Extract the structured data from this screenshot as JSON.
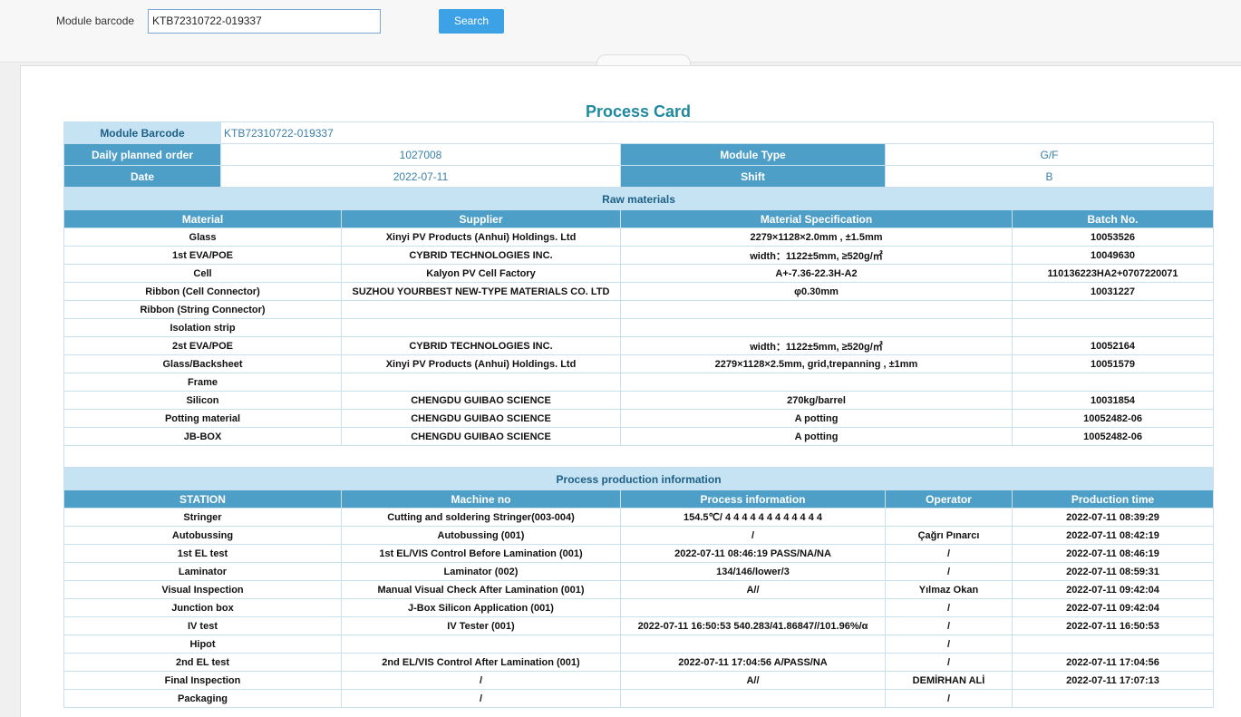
{
  "search": {
    "label": "Module barcode",
    "value": "KTB72310722-019337",
    "button": "Search"
  },
  "card": {
    "title": "Process Card",
    "info": {
      "rows": [
        [
          "Module Barcode",
          "KTB72310722-019337"
        ],
        [
          "Daily planned order",
          "1027008",
          "Module Type",
          "G/F"
        ],
        [
          "Date",
          "2022-07-11",
          "Shift",
          "B"
        ]
      ]
    },
    "raw_materials": {
      "title": "Raw materials",
      "headers": [
        "Material",
        "Supplier",
        "Material Specification",
        "Batch No."
      ],
      "rows": [
        [
          "Glass",
          "Xinyi PV Products (Anhui) Holdings. Ltd",
          "2279×1128×2.0mm , ±1.5mm",
          "10053526"
        ],
        [
          "1st EVA/POE",
          "CYBRID TECHNOLOGIES INC.",
          "width：1122±5mm, ≥520g/㎡",
          "10049630"
        ],
        [
          "Cell",
          "Kalyon PV  Cell Factory",
          "A+-7.36-22.3H-A2",
          "110136223HA2+0707220071"
        ],
        [
          "Ribbon (Cell Connector)",
          "SUZHOU YOURBEST NEW-TYPE MATERIALS CO. LTD",
          "φ0.30mm",
          "10031227"
        ],
        [
          "Ribbon (String Connector)",
          null,
          null,
          null
        ],
        [
          "Isolation strip",
          null,
          null,
          null
        ],
        [
          "2st EVA/POE",
          "CYBRID TECHNOLOGIES INC.",
          "width：1122±5mm, ≥520g/㎡",
          "10052164"
        ],
        [
          "Glass/Backsheet",
          "Xinyi PV Products (Anhui) Holdings. Ltd",
          "2279×1128×2.5mm, grid,trepanning , ±1mm",
          "10051579"
        ],
        [
          "Frame",
          null,
          null,
          null
        ],
        [
          "Silicon",
          "CHENGDU GUIBAO SCIENCE",
          "270kg/barrel",
          "10031854"
        ],
        [
          "Potting material",
          "CHENGDU GUIBAO SCIENCE",
          "A potting",
          "10052482-06"
        ],
        [
          "JB-BOX",
          "CHENGDU GUIBAO SCIENCE",
          "A potting",
          "10052482-06"
        ]
      ]
    },
    "process": {
      "title": "Process production information",
      "headers": [
        "STATION",
        "Machine no",
        "Process information",
        "Operator",
        "Production time"
      ],
      "rows": [
        [
          "Stringer",
          "Cutting and soldering Stringer(003-004)",
          "154.5℃/ 4 4 4 4 4 4 4 4 4 4 4 4",
          null,
          "2022-07-11 08:39:29"
        ],
        [
          "Autobussing",
          "Autobussing (001)",
          "/",
          "Çağrı Pınarcı",
          "2022-07-11 08:42:19"
        ],
        [
          "1st EL test",
          "1st EL/VIS Control Before Lamination (001)",
          "2022-07-11 08:46:19 PASS/NA/NA",
          "/",
          "2022-07-11 08:46:19"
        ],
        [
          "Laminator",
          "Laminator (002)",
          "134/146/lower/3",
          "/",
          "2022-07-11 08:59:31"
        ],
        [
          "Visual Inspection",
          "Manual Visual Check After Lamination (001)",
          "A//",
          "Yılmaz Okan",
          "2022-07-11 09:42:04"
        ],
        [
          "Junction box",
          "J-Box Silicon Application (001)",
          null,
          "/",
          "2022-07-11 09:42:04"
        ],
        [
          "IV test",
          "IV Tester (001)",
          "2022-07-11 16:50:53 540.283/41.86847//101.96%/α",
          "/",
          "2022-07-11 16:50:53"
        ],
        [
          "Hipot",
          null,
          null,
          "/",
          null
        ],
        [
          "2nd EL test",
          "2nd EL/VIS Control After Lamination (001)",
          "2022-07-11 17:04:56 A/PASS/NA",
          "/",
          "2022-07-11 17:04:56"
        ],
        [
          "Final Inspection",
          "/",
          "A//",
          "DEMİRHAN ALİ",
          "2022-07-11 17:07:13"
        ],
        [
          "Packaging",
          "/",
          null,
          "/",
          null
        ]
      ]
    }
  }
}
